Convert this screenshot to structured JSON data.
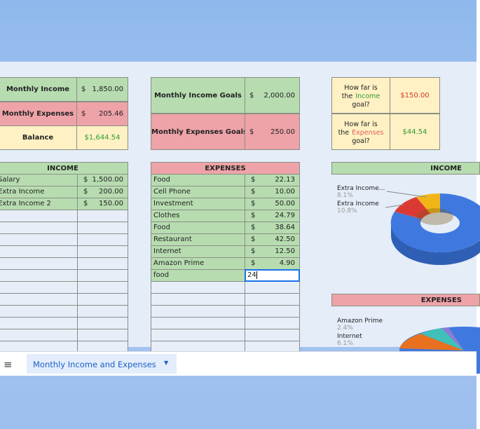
{
  "summary": {
    "rows": [
      {
        "label": "Monthly Income",
        "currency": "$",
        "amount": "1,850.00"
      },
      {
        "label": "Monthly Expenses",
        "currency": "$",
        "amount": "205.46"
      },
      {
        "label": "Balance",
        "amount": "$1,644.54"
      }
    ]
  },
  "goals": {
    "rows": [
      {
        "label": "Monthly Income Goals",
        "currency": "$",
        "amount": "2,000.00"
      },
      {
        "label": "Monthly Expenses Goals",
        "currency": "$",
        "amount": "250.00"
      }
    ]
  },
  "progress": {
    "rows": [
      {
        "line1": "How far is",
        "the": "the",
        "highlight": "Income",
        "line3": "goal?",
        "amount": "$150.00"
      },
      {
        "line1": "How far is",
        "the": "the",
        "highlight": "Expenses",
        "line3": "goal?",
        "amount": "$44.54"
      }
    ]
  },
  "income_table": {
    "header": "INCOME",
    "rows": [
      [
        "Salary",
        "$",
        "1,500.00"
      ],
      [
        "Extra Income",
        "$",
        "200.00"
      ],
      [
        "Extra Income 2",
        "$",
        "150.00"
      ]
    ]
  },
  "expenses_table": {
    "header": "EXPENSES",
    "rows": [
      [
        "Food",
        "$",
        "22.13"
      ],
      [
        "Cell Phone",
        "$",
        "10.00"
      ],
      [
        "Investment",
        "$",
        "50.00"
      ],
      [
        "Clothes",
        "$",
        "24.79"
      ],
      [
        "Food",
        "$",
        "38.64"
      ],
      [
        "Restaurant",
        "$",
        "42.50"
      ],
      [
        "Internet",
        "$",
        "12.50"
      ],
      [
        "Amazon Prime",
        "$",
        "4.90"
      ]
    ],
    "editing_row": {
      "label": "food",
      "input": "24"
    }
  },
  "income_chart": {
    "title": "INCOME",
    "labels": [
      {
        "name": "Extra Income...",
        "pct": "8.1%"
      },
      {
        "name": "Extra Income",
        "pct": "10.8%"
      }
    ]
  },
  "expenses_chart": {
    "title": "EXPENSES",
    "labels": [
      {
        "name": "Amazon Prime",
        "pct": "2.4%"
      },
      {
        "name": "Internet",
        "pct": "6.1%"
      }
    ]
  },
  "sheet_tab": {
    "name": "Monthly Income and Expenses"
  }
}
